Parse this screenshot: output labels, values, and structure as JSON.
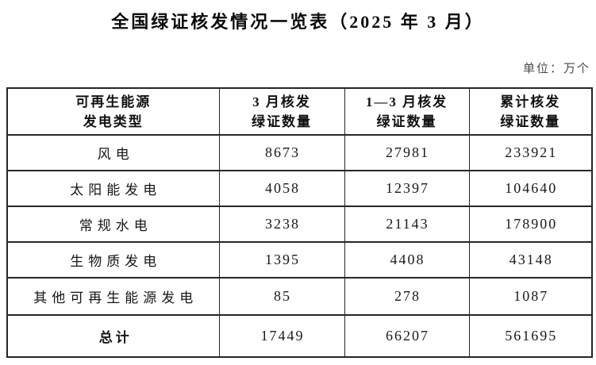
{
  "title": "全国绿证核发情况一览表（2025 年 3 月）",
  "unit_label": "单位：万个",
  "colors": {
    "background": "#ffffff",
    "text": "#1a1a1a",
    "unit_text": "#4a4a4a",
    "table_border": "#262626"
  },
  "table": {
    "headers": [
      {
        "line1": "可再生能源",
        "line2": "发电类型"
      },
      {
        "line1": "3 月核发",
        "line2": "绿证数量"
      },
      {
        "line1": "1—3 月核发",
        "line2": "绿证数量"
      },
      {
        "line1": "累计核发",
        "line2": "绿证数量"
      }
    ],
    "rows": [
      {
        "category": "风电",
        "march": "8673",
        "jan_mar": "27981",
        "cumulative": "233921"
      },
      {
        "category": "太阳能发电",
        "march": "4058",
        "jan_mar": "12397",
        "cumulative": "104640"
      },
      {
        "category": "常规水电",
        "march": "3238",
        "jan_mar": "21143",
        "cumulative": "178900"
      },
      {
        "category": "生物质发电",
        "march": "1395",
        "jan_mar": "4408",
        "cumulative": "43148"
      },
      {
        "category": "其他可再生能源发电",
        "march": "85",
        "jan_mar": "278",
        "cumulative": "1087"
      },
      {
        "category": "总计",
        "march": "17449",
        "jan_mar": "66207",
        "cumulative": "561695"
      }
    ]
  }
}
